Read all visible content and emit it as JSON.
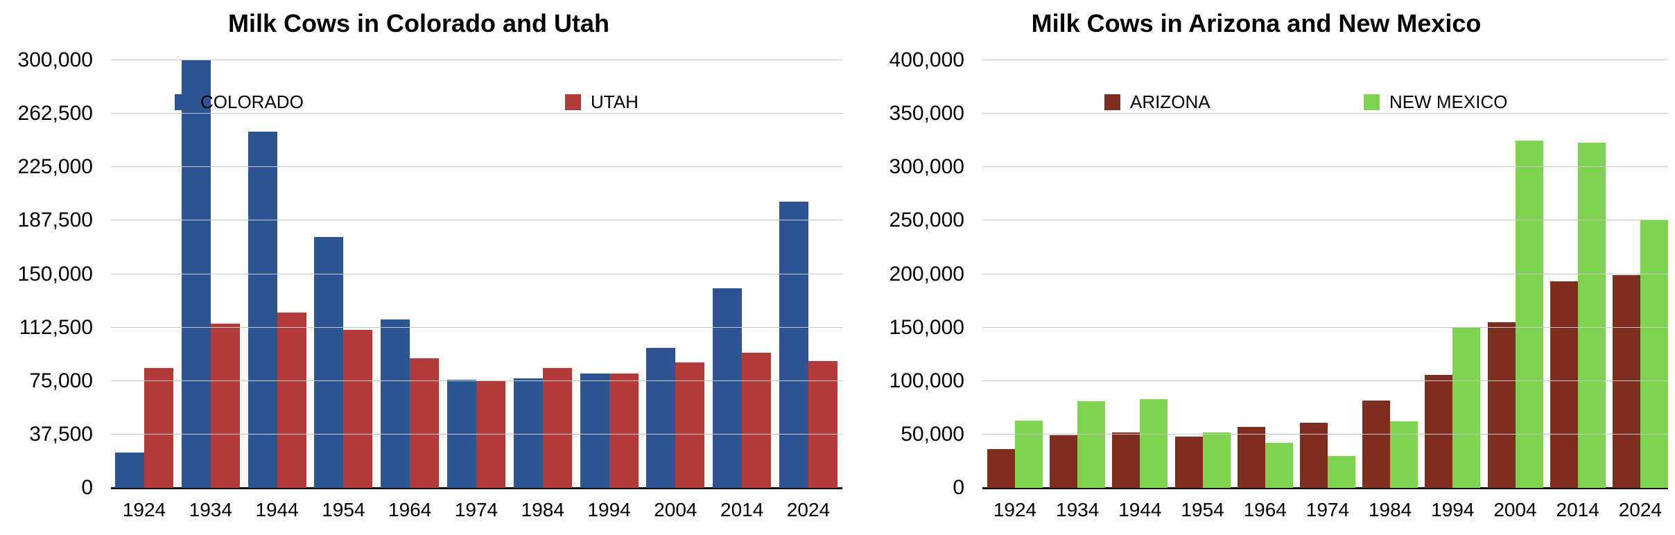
{
  "background_color": "#ffffff",
  "grid_color": "#c9c9c9",
  "axis_line_color": "#161616",
  "text_color": "#000000",
  "chart_data": [
    {
      "type": "bar",
      "title": "Milk Cows in Colorado and Utah",
      "categories": [
        "1924",
        "1934",
        "1944",
        "1954",
        "1964",
        "1974",
        "1984",
        "1994",
        "2004",
        "2014",
        "2024"
      ],
      "series": [
        {
          "name": "COLORADO",
          "color": "#2D5493",
          "values": [
            25000,
            300000,
            250000,
            176000,
            118000,
            76000,
            77000,
            80000,
            98000,
            140000,
            201000
          ]
        },
        {
          "name": "UTAH",
          "color": "#B23B39",
          "values": [
            84000,
            115000,
            123000,
            111000,
            91000,
            75000,
            84000,
            80000,
            88000,
            95000,
            89000
          ]
        }
      ],
      "xlabel": "",
      "ylabel": "",
      "ylim": [
        0,
        300000
      ],
      "y_tick_interval": 37500,
      "y_tick_labels": [
        "300,000",
        "262,500",
        "225,000",
        "187,500",
        "150,000",
        "112,500",
        "75,000",
        "37,500",
        "0"
      ],
      "grid": true,
      "legend_position": "inside-top"
    },
    {
      "type": "bar",
      "title": "Milk Cows in Arizona and New Mexico",
      "categories": [
        "1924",
        "1934",
        "1944",
        "1954",
        "1964",
        "1974",
        "1984",
        "1994",
        "2004",
        "2014",
        "2024"
      ],
      "series": [
        {
          "name": "ARIZONA",
          "color": "#7E2D1F",
          "values": [
            36000,
            49000,
            52000,
            48000,
            57000,
            61000,
            82000,
            106000,
            155000,
            193000,
            199000
          ]
        },
        {
          "name": "NEW MEXICO",
          "color": "#80D251",
          "values": [
            63000,
            81000,
            83000,
            52000,
            42000,
            30000,
            62000,
            150000,
            325000,
            323000,
            250000
          ]
        }
      ],
      "xlabel": "",
      "ylabel": "",
      "ylim": [
        0,
        400000
      ],
      "y_tick_interval": 50000,
      "y_tick_labels": [
        "400,000",
        "350,000",
        "300,000",
        "250,000",
        "200,000",
        "150,000",
        "100,000",
        "50,000",
        "0"
      ],
      "grid": true,
      "legend_position": "inside-top"
    }
  ]
}
